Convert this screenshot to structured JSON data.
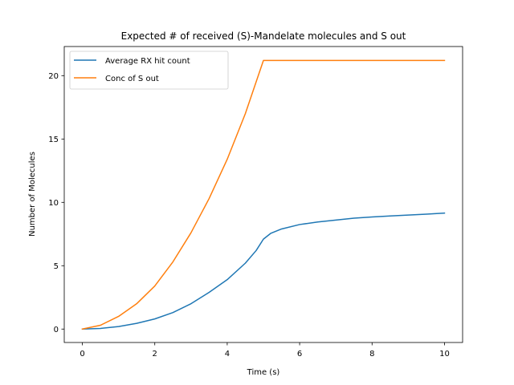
{
  "chart_data": {
    "type": "line",
    "title": "Expected # of received (S)-Mandelate molecules and S out",
    "xlabel": "Time (s)",
    "ylabel": "Number of Molecules",
    "xlim": [
      -0.5,
      10.5
    ],
    "ylim": [
      -1.06,
      22.3
    ],
    "xticks": [
      0,
      2,
      4,
      6,
      8,
      10
    ],
    "yticks": [
      0,
      5,
      10,
      15,
      20
    ],
    "grid": false,
    "legend_position": "upper-left",
    "series": [
      {
        "name": "Average RX hit count",
        "color": "#1f77b4",
        "x": [
          0,
          0.5,
          1,
          1.5,
          2,
          2.5,
          3,
          3.5,
          4,
          4.5,
          4.8,
          5,
          5.2,
          5.5,
          6,
          6.5,
          7,
          7.5,
          8,
          8.5,
          9,
          9.5,
          10
        ],
        "y": [
          0,
          0.05,
          0.2,
          0.45,
          0.8,
          1.3,
          2.0,
          2.9,
          3.9,
          5.2,
          6.2,
          7.1,
          7.55,
          7.9,
          8.25,
          8.45,
          8.6,
          8.75,
          8.85,
          8.93,
          9.0,
          9.07,
          9.15
        ]
      },
      {
        "name": "Conc of S out",
        "color": "#ff7f0e",
        "x": [
          0,
          0.5,
          1,
          1.5,
          2,
          2.5,
          3,
          3.5,
          4,
          4.5,
          5,
          5.5,
          6,
          7,
          8,
          9,
          10
        ],
        "y": [
          0,
          0.3,
          1.0,
          2.0,
          3.4,
          5.3,
          7.6,
          10.3,
          13.4,
          17.0,
          21.2,
          21.2,
          21.2,
          21.2,
          21.2,
          21.2,
          21.2
        ]
      }
    ]
  }
}
